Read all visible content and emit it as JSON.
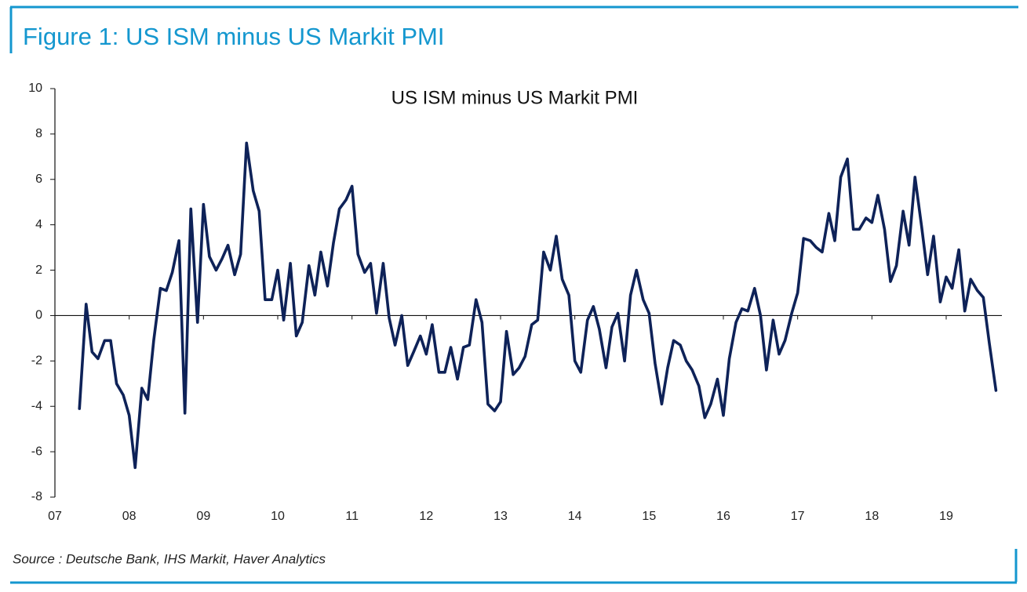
{
  "header": {
    "title": "Figure 1: US ISM minus US Markit PMI"
  },
  "footer": {
    "source": "Source : Deutsche Bank, IHS Markit, Haver Analytics"
  },
  "chart_data": {
    "type": "line",
    "title": "US ISM minus US Markit PMI",
    "x": [
      2007.33,
      2007.42,
      2007.5,
      2007.58,
      2007.67,
      2007.75,
      2007.83,
      2007.92,
      2008,
      2008.08,
      2008.17,
      2008.25,
      2008.33,
      2008.42,
      2008.5,
      2008.58,
      2008.67,
      2008.75,
      2008.83,
      2008.92,
      2009,
      2009.08,
      2009.17,
      2009.25,
      2009.33,
      2009.42,
      2009.5,
      2009.58,
      2009.67,
      2009.75,
      2009.83,
      2009.92,
      2010,
      2010.08,
      2010.17,
      2010.25,
      2010.33,
      2010.42,
      2010.5,
      2010.58,
      2010.67,
      2010.75,
      2010.83,
      2010.92,
      2011,
      2011.08,
      2011.17,
      2011.25,
      2011.33,
      2011.42,
      2011.5,
      2011.58,
      2011.67,
      2011.75,
      2011.83,
      2011.92,
      2012,
      2012.08,
      2012.17,
      2012.25,
      2012.33,
      2012.42,
      2012.5,
      2012.58,
      2012.67,
      2012.75,
      2012.83,
      2012.92,
      2013,
      2013.08,
      2013.17,
      2013.25,
      2013.33,
      2013.42,
      2013.5,
      2013.58,
      2013.67,
      2013.75,
      2013.83,
      2013.92,
      2014,
      2014.08,
      2014.17,
      2014.25,
      2014.33,
      2014.42,
      2014.5,
      2014.58,
      2014.67,
      2014.75,
      2014.83,
      2014.92,
      2015,
      2015.08,
      2015.17,
      2015.25,
      2015.33,
      2015.42,
      2015.5,
      2015.58,
      2015.67,
      2015.75,
      2015.83,
      2015.92,
      2016,
      2016.08,
      2016.17,
      2016.25,
      2016.33,
      2016.42,
      2016.5,
      2016.58,
      2016.67,
      2016.75,
      2016.83,
      2016.92,
      2017,
      2017.08,
      2017.17,
      2017.25,
      2017.33,
      2017.42,
      2017.5,
      2017.58,
      2017.67,
      2017.75,
      2017.83,
      2017.92,
      2018,
      2018.08,
      2018.17,
      2018.25,
      2018.33,
      2018.42,
      2018.5,
      2018.58,
      2018.67,
      2018.75,
      2018.83,
      2018.92,
      2019,
      2019.08,
      2019.17,
      2019.25,
      2019.33,
      2019.42,
      2019.5,
      2019.58,
      2019.67
    ],
    "series": [
      {
        "color": "#0e2258",
        "values": [
          -4.1,
          0.5,
          -1.6,
          -1.9,
          -1.1,
          -1.1,
          -3.0,
          -3.5,
          -4.4,
          -6.7,
          -3.2,
          -3.7,
          -1.1,
          1.2,
          1.1,
          1.9,
          3.3,
          -4.3,
          4.7,
          -0.3,
          4.9,
          2.6,
          2.0,
          2.5,
          3.1,
          1.8,
          2.7,
          7.6,
          5.5,
          4.6,
          0.7,
          0.7,
          2.0,
          -0.2,
          2.3,
          -0.9,
          -0.3,
          2.2,
          0.9,
          2.8,
          1.3,
          3.2,
          4.7,
          5.1,
          5.7,
          2.7,
          1.9,
          2.3,
          0.1,
          2.3,
          -0.1,
          -1.3,
          0.0,
          -2.2,
          -1.6,
          -0.9,
          -1.7,
          -0.4,
          -2.5,
          -2.5,
          -1.4,
          -2.8,
          -1.4,
          -1.3,
          0.7,
          -0.3,
          -3.9,
          -4.2,
          -3.8,
          -0.7,
          -2.6,
          -2.3,
          -1.8,
          -0.4,
          -0.2,
          2.8,
          2.0,
          3.5,
          1.6,
          0.9,
          -2.0,
          -2.5,
          -0.2,
          0.4,
          -0.6,
          -2.3,
          -0.5,
          0.1,
          -2.0,
          0.9,
          2.0,
          0.7,
          0.1,
          -2.1,
          -3.9,
          -2.3,
          -1.1,
          -1.3,
          -2.0,
          -2.4,
          -3.1,
          -4.5,
          -3.9,
          -2.8,
          -4.4,
          -1.9,
          -0.3,
          0.3,
          0.2,
          1.2,
          0.0,
          -2.4,
          -0.2,
          -1.7,
          -1.1,
          0.1,
          1.0,
          3.4,
          3.3,
          3.0,
          2.8,
          4.5,
          3.3,
          6.1,
          6.9,
          3.8,
          3.8,
          4.3,
          4.1,
          5.3,
          3.8,
          1.5,
          2.2,
          4.6,
          3.1,
          6.1,
          3.9,
          1.8,
          3.5,
          0.6,
          1.7,
          1.2,
          2.9,
          0.2,
          1.6,
          1.1,
          0.8,
          -1.2,
          -3.3
        ]
      }
    ],
    "xlim": [
      2007,
      2019.75
    ],
    "xticks": [
      {
        "value": 2007,
        "label": "07"
      },
      {
        "value": 2008,
        "label": "08"
      },
      {
        "value": 2009,
        "label": "09"
      },
      {
        "value": 2010,
        "label": "10"
      },
      {
        "value": 2011,
        "label": "11"
      },
      {
        "value": 2012,
        "label": "12"
      },
      {
        "value": 2013,
        "label": "13"
      },
      {
        "value": 2014,
        "label": "14"
      },
      {
        "value": 2015,
        "label": "15"
      },
      {
        "value": 2016,
        "label": "16"
      },
      {
        "value": 2017,
        "label": "17"
      },
      {
        "value": 2018,
        "label": "18"
      },
      {
        "value": 2019,
        "label": "19"
      }
    ],
    "ylim": [
      -8,
      10
    ],
    "yticks": [
      -8,
      -6,
      -4,
      -2,
      0,
      2,
      4,
      6,
      8,
      10
    ],
    "grid": false
  }
}
